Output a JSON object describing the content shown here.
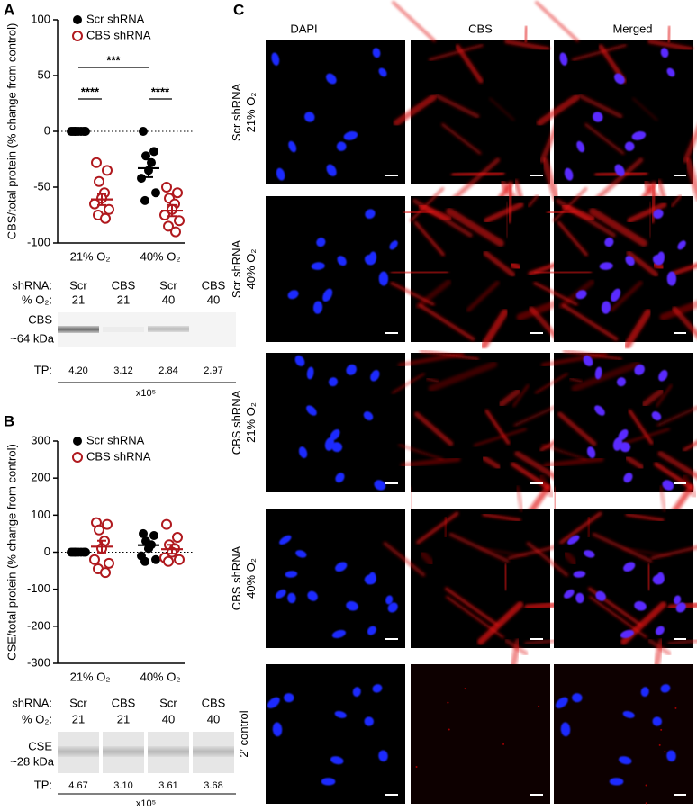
{
  "panels": [
    "A",
    "B",
    "C"
  ],
  "chart_data": [
    {
      "type": "scatter",
      "ylabel": "CBS/total protein (% change from control)",
      "categories": [
        "21% O₂",
        "40% O₂"
      ],
      "series": [
        {
          "name": "Scr shRNA",
          "color": "#000000",
          "filled": true,
          "values": [
            [
              0,
              0,
              0,
              0,
              0,
              0,
              0,
              0
            ],
            [
              0,
              -18,
              -22,
              -28,
              -35,
              -42,
              -55,
              -62
            ]
          ],
          "mean": [
            0,
            -33
          ],
          "sem": [
            0,
            8
          ]
        },
        {
          "name": "CBS shRNA",
          "color": "#b0191e",
          "filled": false,
          "values": [
            [
              -28,
              -35,
              -45,
              -55,
              -60,
              -65,
              -70,
              -75,
              -78
            ],
            [
              -50,
              -55,
              -60,
              -65,
              -70,
              -75,
              -80,
              -85,
              -90
            ]
          ],
          "mean": [
            -61,
            -71
          ],
          "sem": [
            5,
            5
          ]
        }
      ],
      "ylim": [
        -100,
        100
      ],
      "yticks": [
        -100,
        -50,
        0,
        50,
        100
      ],
      "reference_line": 0,
      "annotations": [
        {
          "text": "***",
          "pair": [
            [
              0,
              0
            ],
            [
              0,
              1
            ]
          ]
        },
        {
          "text": "****",
          "pair": [
            [
              0,
              0
            ],
            [
              1,
              0
            ]
          ]
        },
        {
          "text": "****",
          "pair": [
            [
              0,
              1
            ],
            [
              1,
              1
            ]
          ]
        }
      ]
    },
    {
      "type": "scatter",
      "ylabel": "CSE/total protein (% change from control)",
      "categories": [
        "21% O₂",
        "40% O₂"
      ],
      "series": [
        {
          "name": "Scr shRNA",
          "color": "#000000",
          "filled": true,
          "values": [
            [
              0,
              0,
              0,
              0,
              0,
              0,
              0,
              0
            ],
            [
              50,
              45,
              30,
              20,
              10,
              -10,
              -20,
              -25
            ]
          ],
          "mean": [
            0,
            19
          ],
          "sem": [
            0,
            10
          ]
        },
        {
          "name": "CBS shRNA",
          "color": "#b0191e",
          "filled": false,
          "values": [
            [
              80,
              75,
              60,
              30,
              10,
              -20,
              -30,
              -45,
              -55
            ],
            [
              75,
              40,
              20,
              10,
              0,
              -15,
              -20,
              -25
            ]
          ],
          "mean": [
            15,
            8
          ],
          "sem": [
            16,
            12
          ]
        }
      ],
      "ylim": [
        -300,
        300
      ],
      "yticks": [
        -300,
        -200,
        -100,
        0,
        100,
        200,
        300
      ],
      "reference_line": 0,
      "annotations": []
    }
  ],
  "blots": [
    {
      "shrna_label": "shRNA:",
      "o2_label": "% O₂:",
      "shrna": [
        "Scr",
        "CBS",
        "Scr",
        "CBS"
      ],
      "o2": [
        "21",
        "21",
        "40",
        "40"
      ],
      "protein": "CBS",
      "size": "~64 kDa",
      "tp_label": "TP:",
      "tp": [
        "4.20",
        "3.12",
        "2.84",
        "2.97"
      ],
      "unit": "x10⁵"
    },
    {
      "shrna_label": "shRNA:",
      "o2_label": "% O₂:",
      "shrna": [
        "Scr",
        "CBS",
        "Scr",
        "CBS"
      ],
      "o2": [
        "21",
        "21",
        "40",
        "40"
      ],
      "protein": "CSE",
      "size": "~28 kDa",
      "tp_label": "TP:",
      "tp": [
        "4.67",
        "3.10",
        "3.61",
        "3.68"
      ],
      "unit": "x10⁵"
    }
  ],
  "micrographs": {
    "columns": [
      "DAPI",
      "CBS",
      "Merged"
    ],
    "rows": [
      [
        "Scr shRNA",
        "21% O₂"
      ],
      [
        "Scr shRNA",
        "40% O₂"
      ],
      [
        "CBS shRNA",
        "21% O₂"
      ],
      [
        "CBS shRNA",
        "40% O₂"
      ],
      [
        "2′ control"
      ]
    ]
  }
}
